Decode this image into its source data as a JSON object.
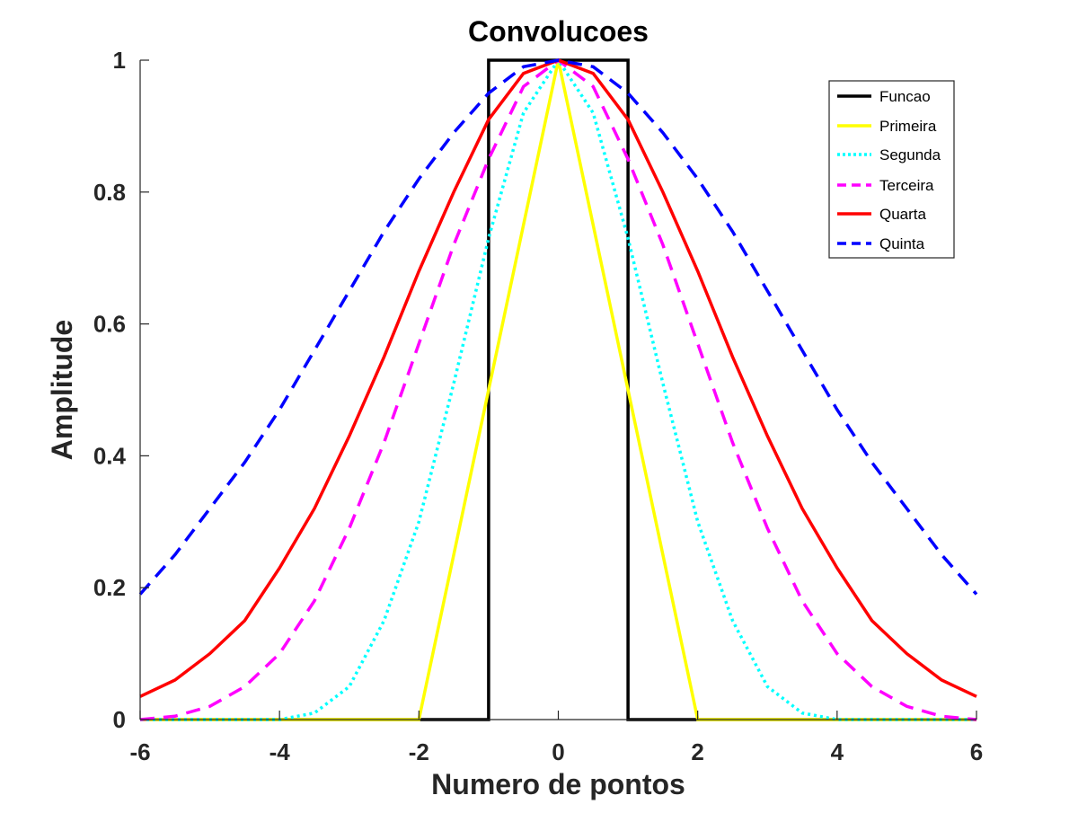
{
  "chart_data": {
    "type": "line",
    "title": "Convolucoes",
    "xlabel": "Numero de pontos",
    "ylabel": "Amplitude",
    "xlim": [
      -6,
      6
    ],
    "ylim": [
      0,
      1
    ],
    "xticks": [
      "-6",
      "-4",
      "-2",
      "0",
      "2",
      "4",
      "6"
    ],
    "xtick_values": [
      -6,
      -4,
      -2,
      0,
      2,
      4,
      6
    ],
    "yticks": [
      "0",
      "0.2",
      "0.4",
      "0.6",
      "0.8",
      "1"
    ],
    "ytick_values": [
      0,
      0.2,
      0.4,
      0.6,
      0.8,
      1
    ],
    "grid": false,
    "legend_position": "top-right",
    "series": [
      {
        "name": "Funcao",
        "color": "#000000",
        "style": "solid",
        "x": [
          -6,
          -1,
          -1,
          1,
          1,
          6
        ],
        "y": [
          0,
          0,
          1,
          1,
          0,
          0
        ]
      },
      {
        "name": "Primeira",
        "color": "#FFFF00",
        "style": "solid",
        "x": [
          -6,
          -2,
          0,
          2,
          6
        ],
        "y": [
          0,
          0,
          1,
          0,
          0
        ]
      },
      {
        "name": "Segunda",
        "color": "#00FFFF",
        "style": "dotted",
        "x": [
          -6,
          -4,
          -3.5,
          -3,
          -2.5,
          -2,
          -1.5,
          -1,
          -0.5,
          0,
          0.5,
          1,
          1.5,
          2,
          2.5,
          3,
          3.5,
          4,
          6
        ],
        "y": [
          0,
          0,
          0.01,
          0.05,
          0.15,
          0.3,
          0.51,
          0.73,
          0.92,
          1,
          0.92,
          0.73,
          0.51,
          0.3,
          0.15,
          0.05,
          0.01,
          0,
          0
        ]
      },
      {
        "name": "Terceira",
        "color": "#FF00FF",
        "style": "dashed",
        "x": [
          -6,
          -5.5,
          -5,
          -4.5,
          -4,
          -3.5,
          -3,
          -2.5,
          -2,
          -1.5,
          -1,
          -0.5,
          0,
          0.5,
          1,
          1.5,
          2,
          2.5,
          3,
          3.5,
          4,
          4.5,
          5,
          5.5,
          6
        ],
        "y": [
          0,
          0.005,
          0.02,
          0.05,
          0.1,
          0.18,
          0.29,
          0.42,
          0.57,
          0.72,
          0.85,
          0.96,
          1,
          0.96,
          0.85,
          0.72,
          0.57,
          0.42,
          0.29,
          0.18,
          0.1,
          0.05,
          0.02,
          0.005,
          0
        ]
      },
      {
        "name": "Quarta",
        "color": "#FF0000",
        "style": "solid",
        "x": [
          -6,
          -5.5,
          -5,
          -4.5,
          -4,
          -3.5,
          -3,
          -2.5,
          -2,
          -1.5,
          -1,
          -0.5,
          0,
          0.5,
          1,
          1.5,
          2,
          2.5,
          3,
          3.5,
          4,
          4.5,
          5,
          5.5,
          6
        ],
        "y": [
          0.035,
          0.06,
          0.1,
          0.15,
          0.23,
          0.32,
          0.43,
          0.55,
          0.68,
          0.8,
          0.91,
          0.98,
          1,
          0.98,
          0.91,
          0.8,
          0.68,
          0.55,
          0.43,
          0.32,
          0.23,
          0.15,
          0.1,
          0.06,
          0.035
        ]
      },
      {
        "name": "Quinta",
        "color": "#0000FF",
        "style": "dashed",
        "x": [
          -6,
          -5.5,
          -5,
          -4.5,
          -4,
          -3.5,
          -3,
          -2.5,
          -2,
          -1.5,
          -1,
          -0.5,
          0,
          0.5,
          1,
          1.5,
          2,
          2.5,
          3,
          3.5,
          4,
          4.5,
          5,
          5.5,
          6
        ],
        "y": [
          0.19,
          0.25,
          0.32,
          0.39,
          0.47,
          0.56,
          0.65,
          0.74,
          0.82,
          0.89,
          0.95,
          0.99,
          1,
          0.99,
          0.95,
          0.89,
          0.82,
          0.74,
          0.65,
          0.56,
          0.47,
          0.39,
          0.32,
          0.25,
          0.19
        ]
      }
    ]
  }
}
